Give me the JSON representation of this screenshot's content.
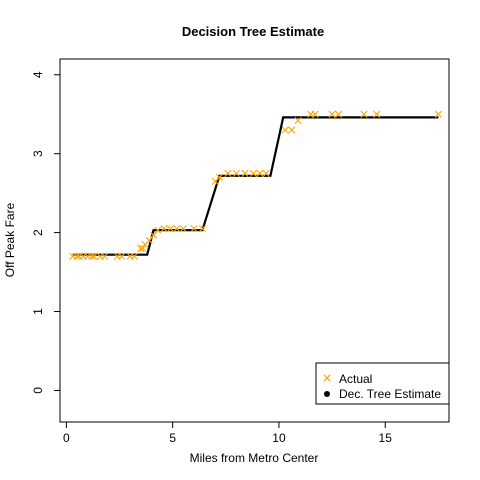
{
  "chart_data": {
    "type": "scatter",
    "title": "Decision Tree Estimate",
    "xlabel": "Miles from Metro Center",
    "ylabel": "Off Peak Fare",
    "xlim": [
      -0.3,
      18.0
    ],
    "ylim": [
      -0.4,
      4.2
    ],
    "xticks": [
      0,
      5,
      10,
      15
    ],
    "yticks": [
      0,
      1,
      2,
      3,
      4
    ],
    "grid": false,
    "legend_position": "bottom-right",
    "series": [
      {
        "name": "Actual",
        "kind": "points",
        "marker": "x",
        "color": "#FFA500",
        "x": [
          0.3,
          0.5,
          0.6,
          0.8,
          1.0,
          1.2,
          1.3,
          1.6,
          1.8,
          2.4,
          2.6,
          3.0,
          3.2,
          3.5,
          3.6,
          3.7,
          3.9,
          4.1,
          4.3,
          4.6,
          4.9,
          5.2,
          5.5,
          6.0,
          6.4,
          7.0,
          7.2,
          7.6,
          8.0,
          8.4,
          8.8,
          9.1,
          9.4,
          10.3,
          10.6,
          10.9,
          11.5,
          11.7,
          12.5,
          12.8,
          14.0,
          14.6,
          17.5
        ],
        "y": [
          1.7,
          1.7,
          1.7,
          1.7,
          1.7,
          1.7,
          1.7,
          1.7,
          1.7,
          1.7,
          1.7,
          1.7,
          1.7,
          1.8,
          1.8,
          1.85,
          1.9,
          1.97,
          2.03,
          2.05,
          2.05,
          2.05,
          2.05,
          2.05,
          2.05,
          2.65,
          2.7,
          2.75,
          2.75,
          2.75,
          2.75,
          2.75,
          2.75,
          3.3,
          3.3,
          3.42,
          3.5,
          3.5,
          3.5,
          3.5,
          3.5,
          3.5,
          3.5
        ]
      },
      {
        "name": "Dec. Tree Estimate",
        "kind": "line",
        "marker": "dot",
        "color": "#000000",
        "x": [
          0.3,
          3.8,
          4.1,
          6.4,
          7.2,
          9.6,
          10.2,
          17.5
        ],
        "y": [
          1.72,
          1.72,
          2.03,
          2.03,
          2.72,
          2.72,
          3.46,
          3.46
        ]
      }
    ]
  }
}
